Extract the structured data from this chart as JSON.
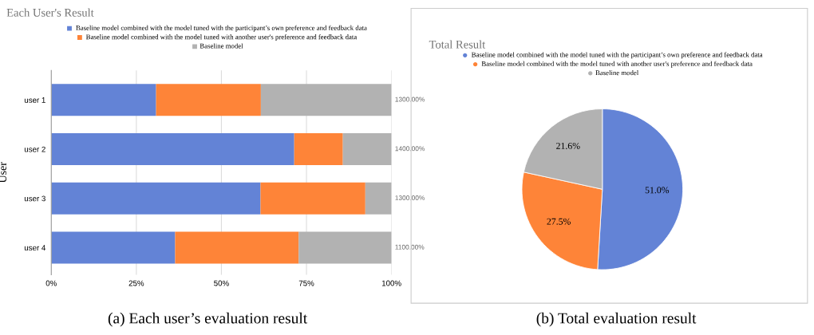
{
  "chart_data": [
    {
      "type": "bar",
      "orientation": "horizontal",
      "stacked": true,
      "title": "Each User's Result",
      "ylabel": "User",
      "categories": [
        "user 1",
        "user 2",
        "user 3",
        "user 4"
      ],
      "series": [
        {
          "name": "Baseline model combined with the model tuned with the participant’s own preference and feedback data",
          "color": "#6383d6",
          "values": [
            30.8,
            71.4,
            61.5,
            36.4
          ]
        },
        {
          "name": "Baseline model combined with the model tuned with another user's preference and feedback data",
          "color": "#fe8438",
          "values": [
            30.8,
            14.3,
            30.8,
            36.3
          ]
        },
        {
          "name": "Baseline model",
          "color": "#b2b2b2",
          "values": [
            38.4,
            14.3,
            7.7,
            27.3
          ]
        }
      ],
      "xlim": [
        0,
        100
      ],
      "xticks": [
        {
          "value": 0,
          "label": "0%"
        },
        {
          "value": 25,
          "label": "25%"
        },
        {
          "value": 50,
          "label": "50%"
        },
        {
          "value": 75,
          "label": "75%"
        },
        {
          "value": 100,
          "label": "100%"
        }
      ],
      "grid": "x",
      "legend": "top",
      "annotations": [
        "(a) Each user’s evaluation result",
        "1300.00%",
        "1400.00%",
        "1300.00%",
        "1100.00%"
      ]
    },
    {
      "type": "pie",
      "title": "Total Result",
      "categories": [
        "Baseline model combined with the model tuned with the participant’s own preference and feedback data",
        "Baseline model combined with the model tuned with another user's preference and feedback data",
        "Baseline model"
      ],
      "values": [
        51.0,
        27.5,
        21.6
      ],
      "colors": [
        "#6383d6",
        "#fe8438",
        "#b2b2b2"
      ],
      "value_labels": [
        "51.0%",
        "27.5%",
        "21.6%"
      ],
      "legend": "top",
      "annotations": [
        "(b) Total evaluation result"
      ]
    }
  ]
}
